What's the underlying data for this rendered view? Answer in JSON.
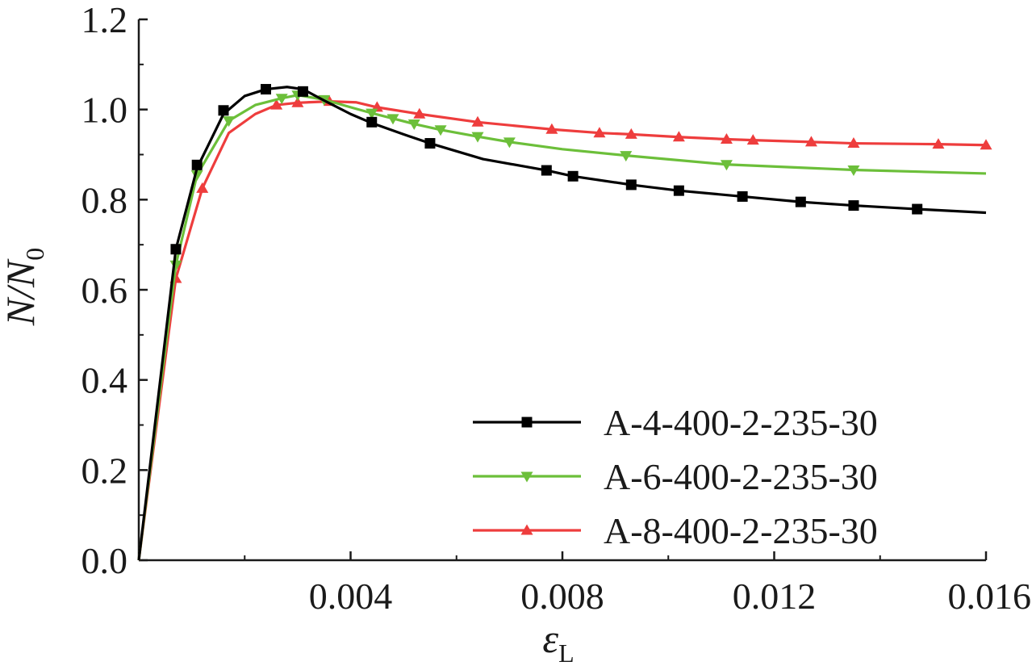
{
  "chart_data": {
    "type": "line",
    "title": "",
    "xlabel": {
      "main": "ε",
      "sub": "L"
    },
    "ylabel": {
      "main": "N/N",
      "sub": "0"
    },
    "xlim": [
      0,
      0.016
    ],
    "ylim": [
      0,
      1.2
    ],
    "x_ticks": [
      {
        "value": 0.004,
        "label": "0.004"
      },
      {
        "value": 0.008,
        "label": "0.008"
      },
      {
        "value": 0.012,
        "label": "0.012"
      },
      {
        "value": 0.016,
        "label": "0.016"
      }
    ],
    "y_ticks": [
      {
        "value": 0.0,
        "label": "0.0"
      },
      {
        "value": 0.2,
        "label": "0.2"
      },
      {
        "value": 0.4,
        "label": "0.4"
      },
      {
        "value": 0.6,
        "label": "0.6"
      },
      {
        "value": 0.8,
        "label": "0.8"
      },
      {
        "value": 1.0,
        "label": "1.0"
      },
      {
        "value": 1.2,
        "label": "1.2"
      }
    ],
    "grid": false,
    "legend_position": "bottom-right",
    "series": [
      {
        "name": "A-4-400-2-235-30",
        "color": "#000000",
        "marker": "square",
        "line": [
          [
            0,
            0
          ],
          [
            0.0007,
            0.69
          ],
          [
            0.0011,
            0.87
          ],
          [
            0.0016,
            0.99
          ],
          [
            0.002,
            1.03
          ],
          [
            0.0024,
            1.045
          ],
          [
            0.0028,
            1.05
          ],
          [
            0.0031,
            1.045
          ],
          [
            0.0035,
            1.02
          ],
          [
            0.004,
            0.99
          ],
          [
            0.0044,
            0.97
          ],
          [
            0.005,
            0.945
          ],
          [
            0.0055,
            0.925
          ],
          [
            0.0065,
            0.89
          ],
          [
            0.0077,
            0.865
          ],
          [
            0.0082,
            0.852
          ],
          [
            0.0093,
            0.833
          ],
          [
            0.0102,
            0.82
          ],
          [
            0.0114,
            0.807
          ],
          [
            0.0125,
            0.795
          ],
          [
            0.0135,
            0.787
          ],
          [
            0.0147,
            0.779
          ],
          [
            0.016,
            0.771
          ]
        ],
        "markers": [
          [
            0.0007,
            0.69
          ],
          [
            0.0011,
            0.877
          ],
          [
            0.0016,
            0.998
          ],
          [
            0.0024,
            1.045
          ],
          [
            0.0031,
            1.04
          ],
          [
            0.0044,
            0.972
          ],
          [
            0.0055,
            0.925
          ],
          [
            0.0077,
            0.865
          ],
          [
            0.0082,
            0.852
          ],
          [
            0.0093,
            0.833
          ],
          [
            0.0102,
            0.82
          ],
          [
            0.0114,
            0.807
          ],
          [
            0.0125,
            0.795
          ],
          [
            0.0135,
            0.787
          ],
          [
            0.0147,
            0.779
          ]
        ]
      },
      {
        "name": "A-6-400-2-235-30",
        "color": "#6cbf3a",
        "marker": "triangle-down",
        "line": [
          [
            0,
            0
          ],
          [
            0.0007,
            0.655
          ],
          [
            0.0011,
            0.855
          ],
          [
            0.0017,
            0.975
          ],
          [
            0.0022,
            1.01
          ],
          [
            0.0027,
            1.025
          ],
          [
            0.003,
            1.032
          ],
          [
            0.0035,
            1.022
          ],
          [
            0.004,
            1.005
          ],
          [
            0.0044,
            0.992
          ],
          [
            0.0048,
            0.98
          ],
          [
            0.0052,
            0.968
          ],
          [
            0.0057,
            0.955
          ],
          [
            0.0064,
            0.94
          ],
          [
            0.007,
            0.928
          ],
          [
            0.008,
            0.912
          ],
          [
            0.0092,
            0.898
          ],
          [
            0.0111,
            0.878
          ],
          [
            0.0135,
            0.866
          ],
          [
            0.016,
            0.858
          ]
        ],
        "markers": [
          [
            0.0007,
            0.655
          ],
          [
            0.0011,
            0.855
          ],
          [
            0.0017,
            0.975
          ],
          [
            0.0027,
            1.025
          ],
          [
            0.003,
            1.032
          ],
          [
            0.0035,
            1.022
          ],
          [
            0.0044,
            0.992
          ],
          [
            0.0048,
            0.98
          ],
          [
            0.0052,
            0.968
          ],
          [
            0.0057,
            0.955
          ],
          [
            0.0064,
            0.94
          ],
          [
            0.007,
            0.928
          ],
          [
            0.0092,
            0.898
          ],
          [
            0.0111,
            0.878
          ],
          [
            0.0135,
            0.866
          ]
        ]
      },
      {
        "name": "A-8-400-2-235-30",
        "color": "#ee3d3d",
        "marker": "triangle-up",
        "line": [
          [
            0,
            0
          ],
          [
            0.0007,
            0.625
          ],
          [
            0.0012,
            0.825
          ],
          [
            0.0017,
            0.948
          ],
          [
            0.0022,
            0.99
          ],
          [
            0.0026,
            1.01
          ],
          [
            0.003,
            1.015
          ],
          [
            0.0036,
            1.018
          ],
          [
            0.0041,
            1.016
          ],
          [
            0.0045,
            1.005
          ],
          [
            0.0053,
            0.99
          ],
          [
            0.0064,
            0.972
          ],
          [
            0.0078,
            0.956
          ],
          [
            0.0087,
            0.948
          ],
          [
            0.0093,
            0.945
          ],
          [
            0.0102,
            0.939
          ],
          [
            0.0111,
            0.934
          ],
          [
            0.0116,
            0.932
          ],
          [
            0.0127,
            0.928
          ],
          [
            0.0135,
            0.925
          ],
          [
            0.0151,
            0.923
          ],
          [
            0.016,
            0.921
          ]
        ],
        "markers": [
          [
            0.0007,
            0.625
          ],
          [
            0.0012,
            0.825
          ],
          [
            0.0026,
            1.01
          ],
          [
            0.003,
            1.015
          ],
          [
            0.0036,
            1.018
          ],
          [
            0.0045,
            1.005
          ],
          [
            0.0053,
            0.99
          ],
          [
            0.0064,
            0.972
          ],
          [
            0.0078,
            0.956
          ],
          [
            0.0087,
            0.948
          ],
          [
            0.0093,
            0.945
          ],
          [
            0.0102,
            0.939
          ],
          [
            0.0111,
            0.934
          ],
          [
            0.0116,
            0.932
          ],
          [
            0.0127,
            0.928
          ],
          [
            0.0135,
            0.925
          ],
          [
            0.0151,
            0.923
          ],
          [
            0.016,
            0.921
          ]
        ]
      }
    ]
  }
}
